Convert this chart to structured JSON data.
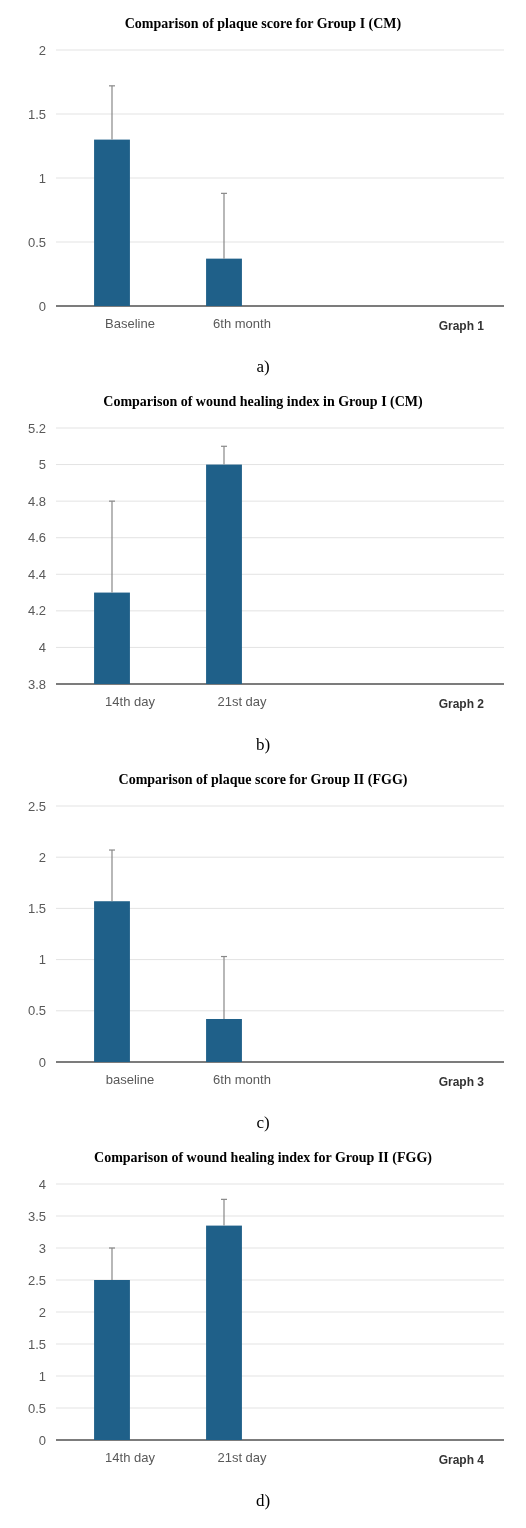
{
  "chart_data": [
    {
      "type": "bar",
      "title": "Comparison of plaque score for Group I (CM)",
      "categories": [
        "Baseline",
        "6th month"
      ],
      "values": [
        1.3,
        0.37
      ],
      "errors": [
        [
          1.3,
          1.72
        ],
        [
          0.37,
          0.88
        ]
      ],
      "color": "#1f6089",
      "ylim": [
        0,
        2
      ],
      "yticks": [
        0,
        0.5,
        1,
        1.5,
        2
      ],
      "grid": "y",
      "annotations": [
        "Graph 1",
        "a)"
      ]
    },
    {
      "type": "bar",
      "title": "Comparison of wound healing index in Group I (CM)",
      "categories": [
        "14th day",
        "21st day"
      ],
      "values": [
        4.3,
        5.0
      ],
      "errors": [
        [
          4.3,
          4.8
        ],
        [
          5.0,
          5.1
        ]
      ],
      "color": "#1f6089",
      "ylim": [
        3.8,
        5.2
      ],
      "yticks": [
        3.8,
        4,
        4.2,
        4.4,
        4.6,
        4.8,
        5,
        5.2
      ],
      "grid": "y",
      "annotations": [
        "Graph 2",
        "b)"
      ]
    },
    {
      "type": "bar",
      "title": "Comparison of plaque score for Group II (FGG)",
      "categories": [
        "baseline",
        "6th month"
      ],
      "values": [
        1.57,
        0.42
      ],
      "errors": [
        [
          1.57,
          2.07
        ],
        [
          0.42,
          1.03
        ]
      ],
      "color": "#1f6089",
      "ylim": [
        0,
        2.5
      ],
      "yticks": [
        0,
        0.5,
        1,
        1.5,
        2,
        2.5
      ],
      "grid": "y",
      "annotations": [
        "Graph 3",
        "c)"
      ]
    },
    {
      "type": "bar",
      "title": "Comparison of wound healing index for Group II (FGG)",
      "categories": [
        "14th day",
        "21st day"
      ],
      "values": [
        2.5,
        3.35
      ],
      "errors": [
        [
          2.5,
          3.0
        ],
        [
          3.35,
          3.76
        ]
      ],
      "color": "#1f6089",
      "ylim": [
        0,
        4
      ],
      "yticks": [
        0,
        0.5,
        1,
        1.5,
        2,
        2.5,
        3,
        3.5,
        4
      ],
      "grid": "y",
      "annotations": [
        "Graph 4",
        "d)"
      ]
    }
  ]
}
